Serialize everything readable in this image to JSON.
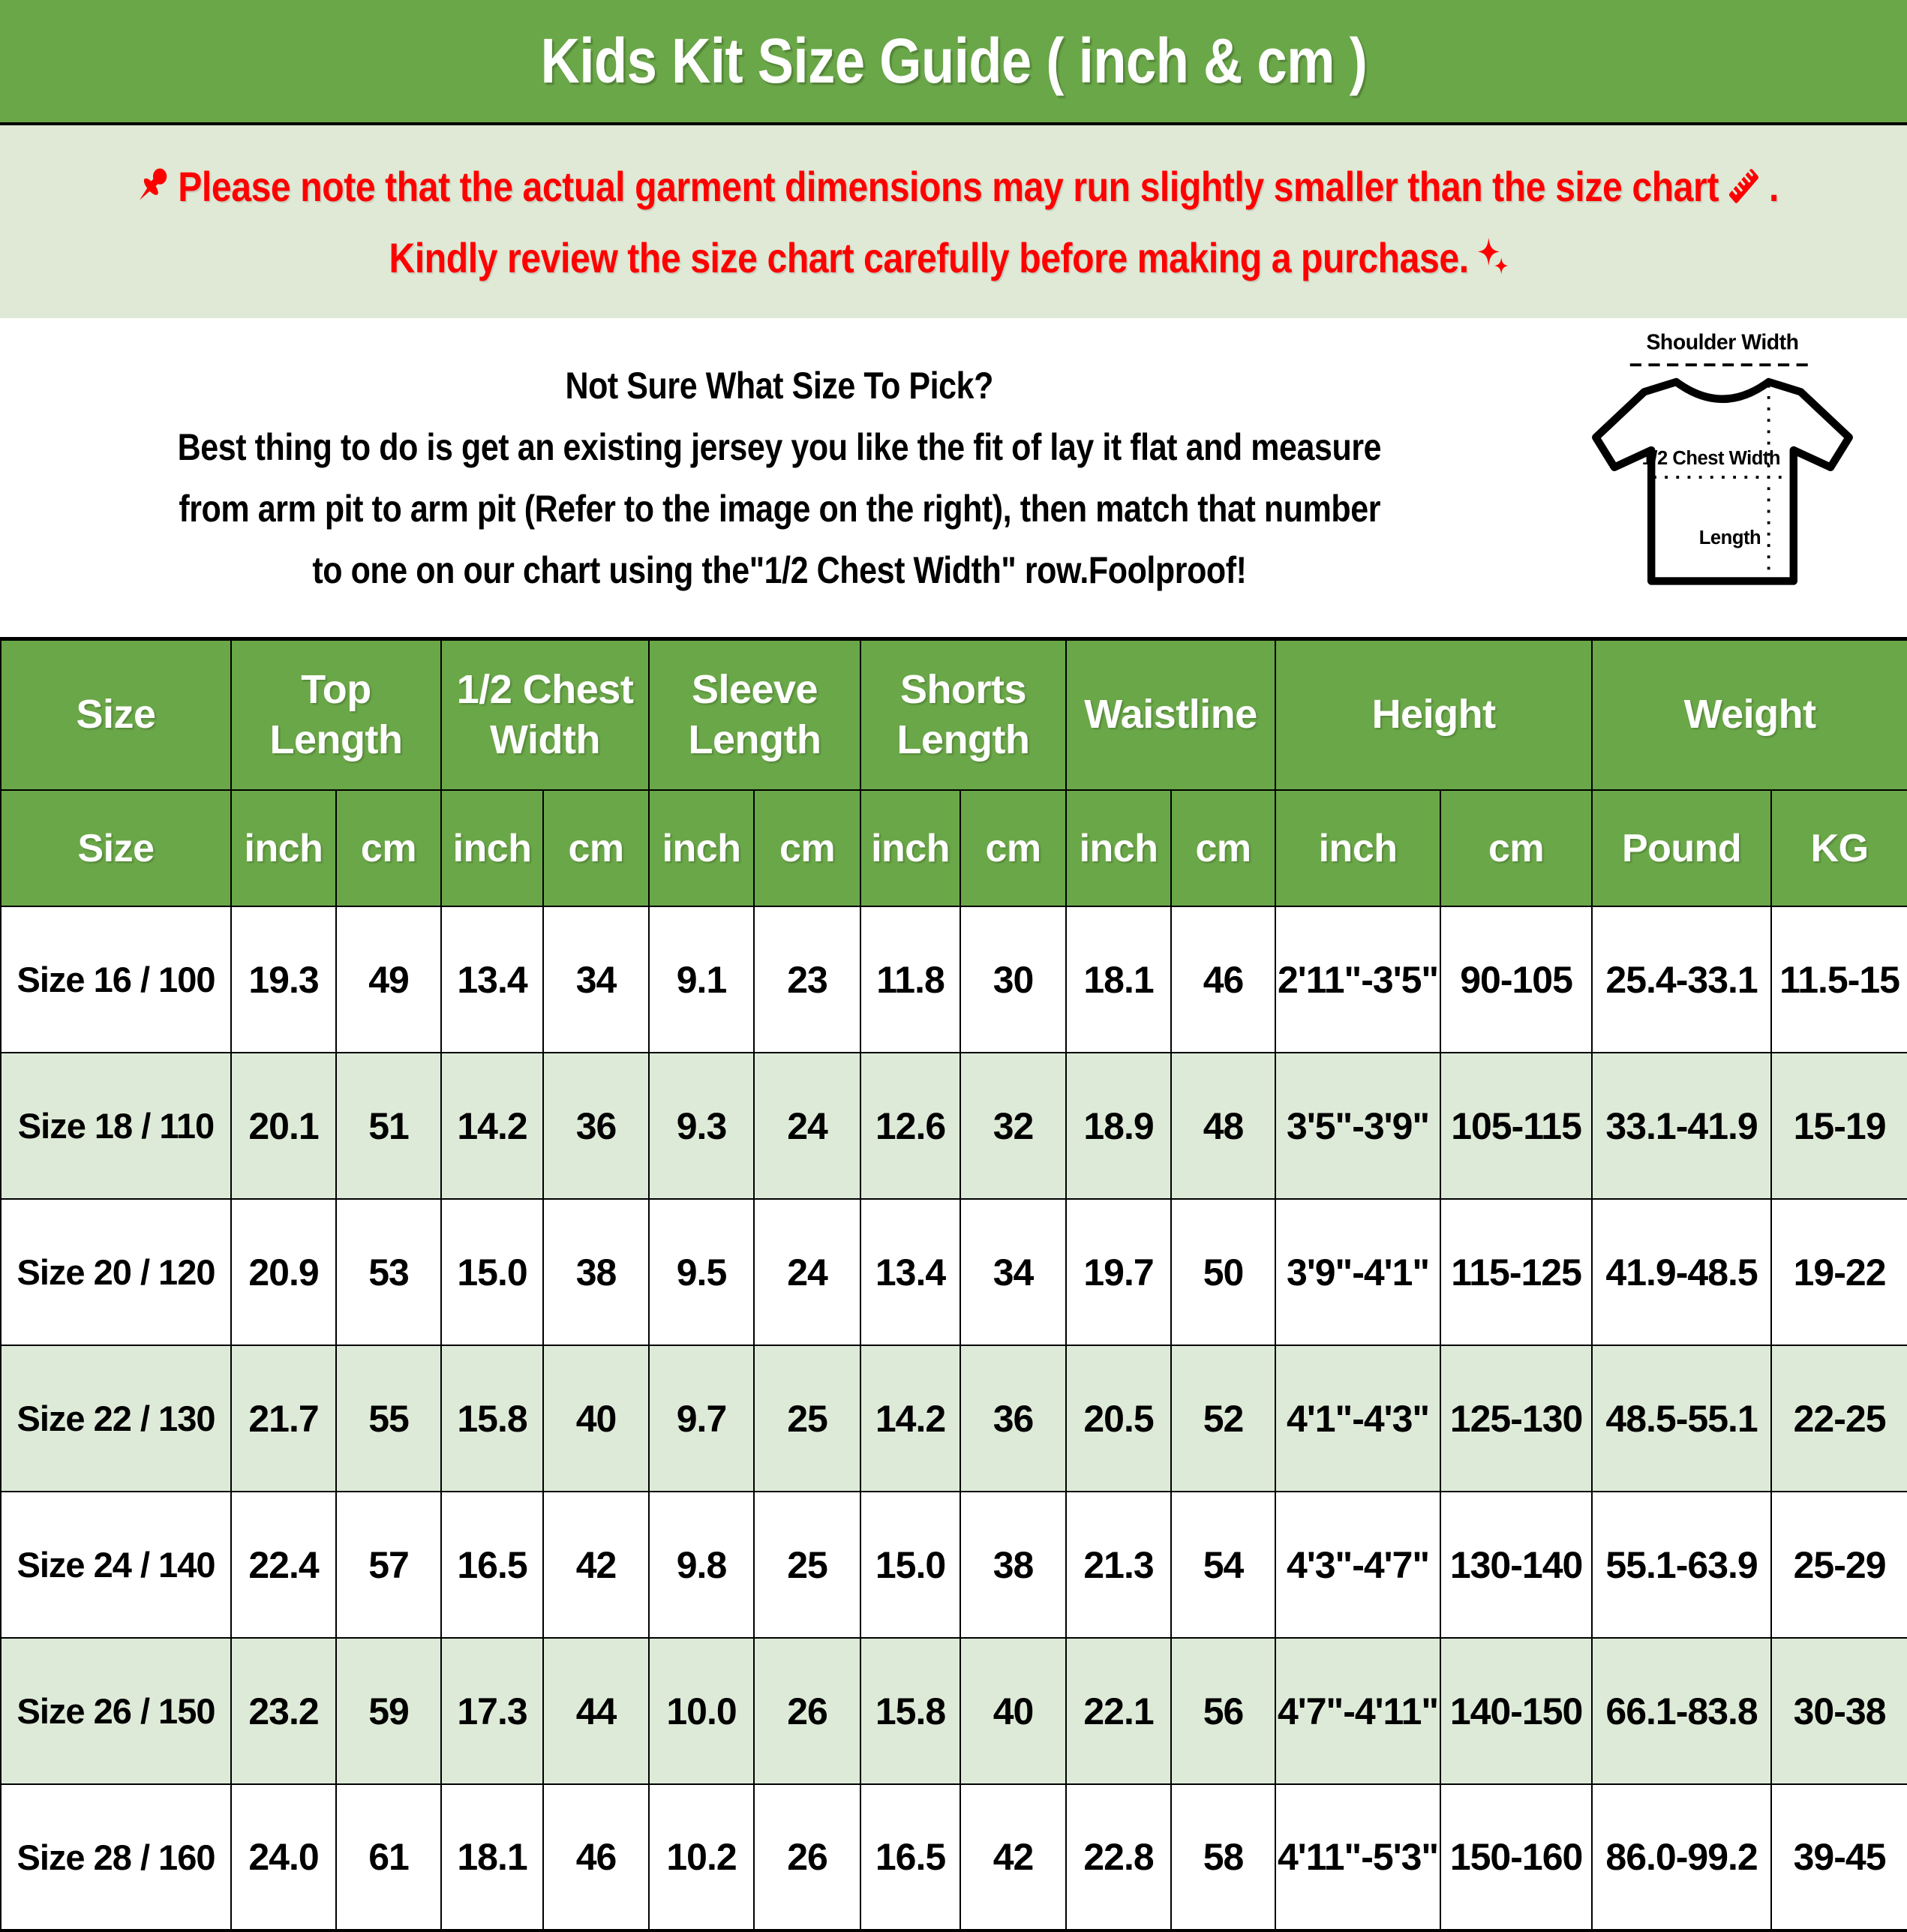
{
  "header": {
    "title": "Kids Kit Size Guide ( inch & cm )"
  },
  "notice": {
    "line1": "Please note that the actual garment dimensions may run slightly smaller than the size chart",
    "line1_end": ".",
    "line2": "Kindly review the size chart carefully before making a purchase.",
    "icons": [
      "pushpin-icon",
      "ruler-icon",
      "sparkles-icon"
    ]
  },
  "info": {
    "title": "Not Sure What Size To Pick?",
    "line1": "Best thing to do is get an existing jersey you like the fit of lay it flat and measure",
    "line2": "from arm pit to arm pit (Refer to the image on the right), then match that number",
    "line3": "to one on our chart using the\"1/2 Chest Width\" row.Foolproof!"
  },
  "diagram": {
    "shoulder_label": "Shoulder Width",
    "chest_label": "1/2 Chest Width",
    "length_label": "Length"
  },
  "colors": {
    "green": "#6aa748",
    "light_green": "#dfe9d5",
    "row_alt_green": "#deead8",
    "red": "#fe0000"
  },
  "table": {
    "group_headers": [
      {
        "label": "Size",
        "span": 1
      },
      {
        "label": "Top Length",
        "span": 2
      },
      {
        "label": "1/2 Chest Width",
        "span": 2
      },
      {
        "label": "Sleeve Length",
        "span": 2
      },
      {
        "label": "Shorts Length",
        "span": 2
      },
      {
        "label": "Waistline",
        "span": 2
      },
      {
        "label": "Height",
        "span": 2
      },
      {
        "label": "Weight",
        "span": 2
      }
    ],
    "sub_headers": [
      "Size",
      "inch",
      "cm",
      "inch",
      "cm",
      "inch",
      "cm",
      "inch",
      "cm",
      "inch",
      "cm",
      "inch",
      "cm",
      "Pound",
      "KG"
    ],
    "rows": [
      [
        "Size 16 / 100",
        "19.3",
        "49",
        "13.4",
        "34",
        "9.1",
        "23",
        "11.8",
        "30",
        "18.1",
        "46",
        "2'11\"-3'5\"",
        "90-105",
        "25.4-33.1",
        "11.5-15"
      ],
      [
        "Size 18 / 110",
        "20.1",
        "51",
        "14.2",
        "36",
        "9.3",
        "24",
        "12.6",
        "32",
        "18.9",
        "48",
        "3'5\"-3'9\"",
        "105-115",
        "33.1-41.9",
        "15-19"
      ],
      [
        "Size 20 / 120",
        "20.9",
        "53",
        "15.0",
        "38",
        "9.5",
        "24",
        "13.4",
        "34",
        "19.7",
        "50",
        "3'9\"-4'1\"",
        "115-125",
        "41.9-48.5",
        "19-22"
      ],
      [
        "Size 22 / 130",
        "21.7",
        "55",
        "15.8",
        "40",
        "9.7",
        "25",
        "14.2",
        "36",
        "20.5",
        "52",
        "4'1\"-4'3\"",
        "125-130",
        "48.5-55.1",
        "22-25"
      ],
      [
        "Size 24 / 140",
        "22.4",
        "57",
        "16.5",
        "42",
        "9.8",
        "25",
        "15.0",
        "38",
        "21.3",
        "54",
        "4'3\"-4'7\"",
        "130-140",
        "55.1-63.9",
        "25-29"
      ],
      [
        "Size 26 / 150",
        "23.2",
        "59",
        "17.3",
        "44",
        "10.0",
        "26",
        "15.8",
        "40",
        "22.1",
        "56",
        "4'7\"-4'11\"",
        "140-150",
        "66.1-83.8",
        "30-38"
      ],
      [
        "Size 28 / 160",
        "24.0",
        "61",
        "18.1",
        "46",
        "10.2",
        "26",
        "16.5",
        "42",
        "22.8",
        "58",
        "4'11\"-5'3\"",
        "150-160",
        "86.0-99.2",
        "39-45"
      ]
    ]
  }
}
